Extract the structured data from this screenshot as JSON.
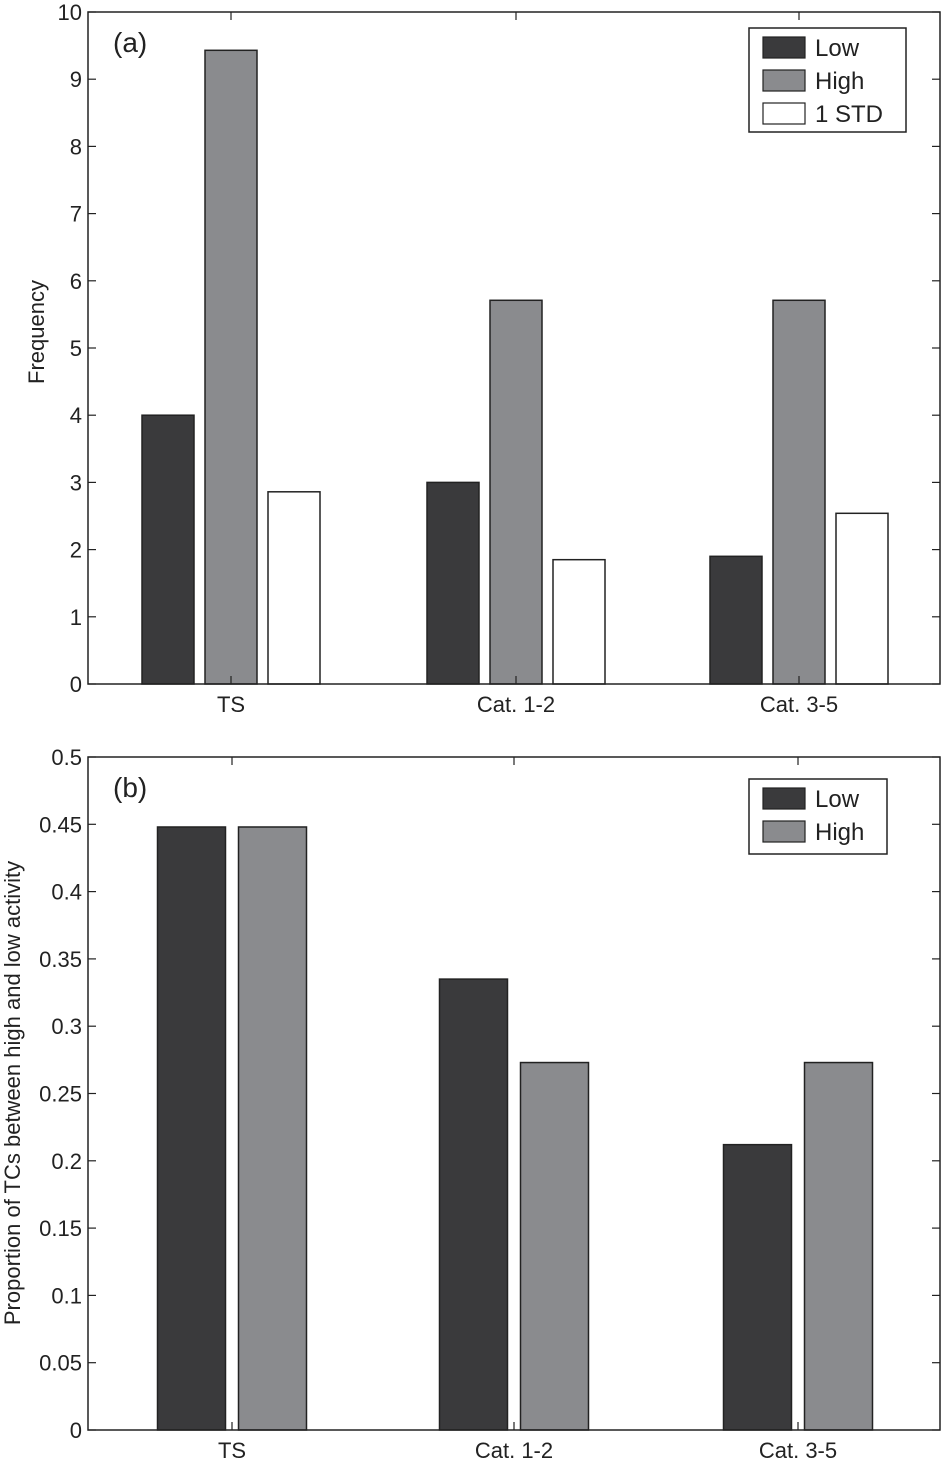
{
  "chart_data": [
    {
      "type": "bar",
      "panel_label": "(a)",
      "categories": [
        "TS",
        "Cat. 1-2",
        "Cat. 3-5"
      ],
      "series": [
        {
          "name": "Low",
          "values": [
            4.0,
            3.0,
            1.9
          ],
          "color": "#3a3a3c"
        },
        {
          "name": "High",
          "values": [
            9.43,
            5.71,
            5.71
          ],
          "color": "#8a8b8e"
        },
        {
          "name": "1 STD",
          "values": [
            2.86,
            1.85,
            2.54
          ],
          "color": "#ffffff"
        }
      ],
      "xlabel": "",
      "ylabel": "Frequency",
      "ylim": [
        0,
        10
      ],
      "yticks": [
        "0",
        "1",
        "2",
        "3",
        "4",
        "5",
        "6",
        "7",
        "8",
        "9",
        "10"
      ],
      "grid": false,
      "legend": "top-right"
    },
    {
      "type": "bar",
      "panel_label": "(b)",
      "categories": [
        "TS",
        "Cat. 1-2",
        "Cat. 3-5"
      ],
      "series": [
        {
          "name": "Low",
          "values": [
            0.448,
            0.335,
            0.212
          ],
          "color": "#3a3a3c"
        },
        {
          "name": "High",
          "values": [
            0.448,
            0.273,
            0.273
          ],
          "color": "#8a8b8e"
        }
      ],
      "xlabel": "",
      "ylabel": "Proportion of TCs between high and low activity",
      "ylim": [
        0,
        0.5
      ],
      "yticks": [
        "0",
        "0.05",
        "0.1",
        "0.15",
        "0.2",
        "0.25",
        "0.3",
        "0.35",
        "0.4",
        "0.45",
        "0.5"
      ],
      "grid": false,
      "legend": "top-right"
    }
  ]
}
